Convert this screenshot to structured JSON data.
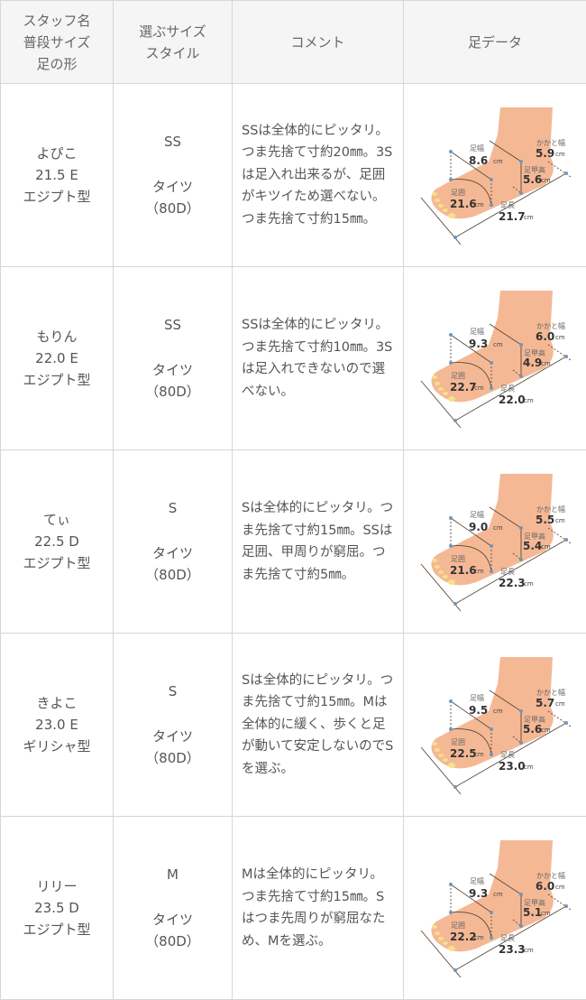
{
  "header": {
    "col1": [
      "スタッフ名",
      "普段サイズ",
      "足の形"
    ],
    "col2": [
      "選ぶサイズ",
      "スタイル"
    ],
    "col3": "コメント",
    "col4": "足データ"
  },
  "foot_labels": {
    "width": "足幅",
    "heel": "かかと幅",
    "instep": "足甲高",
    "girth": "足囲",
    "length": "足長",
    "unit": "cm"
  },
  "colors": {
    "skin": "#f5b895",
    "line": "#5a4a3a",
    "dot": "#6f97b8"
  },
  "rows": [
    {
      "name": "よぴこ",
      "size": "21.5 E",
      "shape": "エジプト型",
      "choice": "SS",
      "style": "タイツ",
      "denier": "（80D）",
      "comment": "SSは全体的にピッタリ。つま先捨て寸約20㎜。3Sは足入れ出来るが、足囲がキツイため選べない。つま先捨て寸約15㎜。",
      "foot": {
        "width": "8.6",
        "heel": "5.9",
        "instep": "5.6",
        "girth": "21.6",
        "length": "21.7"
      }
    },
    {
      "name": "もりん",
      "size": "22.0 E",
      "shape": "エジプト型",
      "choice": "SS",
      "style": "タイツ",
      "denier": "（80D）",
      "comment": "SSは全体的にピッタリ。つま先捨て寸約10㎜。3Sは足入れできないので選べない。",
      "foot": {
        "width": "9.3",
        "heel": "6.0",
        "instep": "4.9",
        "girth": "22.7",
        "length": "22.0"
      }
    },
    {
      "name": "てぃ",
      "size": "22.5 D",
      "shape": "エジプト型",
      "choice": "S",
      "style": "タイツ",
      "denier": "（80D）",
      "comment": "Sは全体的にピッタリ。つま先捨て寸約15㎜。SSは足囲、甲周りが窮屈。つま先捨て寸約5㎜。",
      "foot": {
        "width": "9.0",
        "heel": "5.5",
        "instep": "5.4",
        "girth": "21.6",
        "length": "22.3"
      }
    },
    {
      "name": "きよこ",
      "size": "23.0 E",
      "shape": "ギリシャ型",
      "choice": "S",
      "style": "タイツ",
      "denier": "（80D）",
      "comment": "Sは全体的にピッタリ。つま先捨て寸約15㎜。Mは全体的に緩く、歩くと足が動いて安定しないのでSを選ぶ。",
      "foot": {
        "width": "9.5",
        "heel": "5.7",
        "instep": "5.6",
        "girth": "22.5",
        "length": "23.0"
      }
    },
    {
      "name": "リリー",
      "size": "23.5 D",
      "shape": "エジプト型",
      "choice": "M",
      "style": "タイツ",
      "denier": "（80D）",
      "comment": "Mは全体的にピッタリ。つま先捨て寸約15㎜。Sはつま先周りが窮屈なため、Mを選ぶ。",
      "foot": {
        "width": "9.3",
        "heel": "6.0",
        "instep": "5.1",
        "girth": "22.2",
        "length": "23.3"
      }
    }
  ]
}
